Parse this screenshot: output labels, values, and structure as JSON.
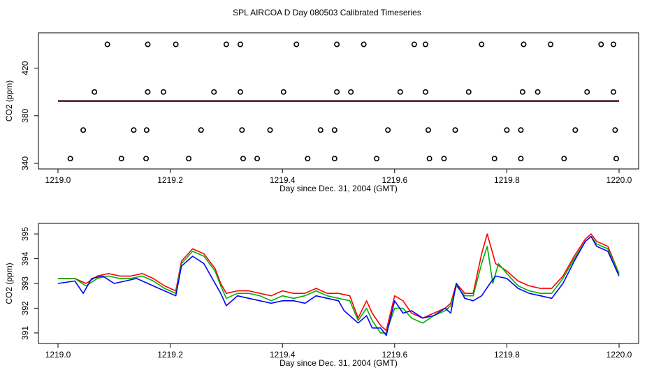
{
  "title": "SPL AIRCOA D  Day 080503  Calibrated Timeseries",
  "chart_data": [
    {
      "type": "scatter",
      "xlabel": "Day since Dec. 31, 2004 (GMT)",
      "ylabel": "CO2 (ppm)",
      "xlim": [
        1219.0,
        1220.0
      ],
      "ylim": [
        340,
        445
      ],
      "x_ticks": [
        "1219.0",
        "1219.2",
        "1219.4",
        "1219.6",
        "1219.8",
        "1220.0"
      ],
      "y_ticks": [
        "340",
        "380",
        "420"
      ],
      "grid": false,
      "points": [
        {
          "x": 1219.088,
          "y": 440
        },
        {
          "x": 1219.16,
          "y": 440
        },
        {
          "x": 1219.21,
          "y": 440
        },
        {
          "x": 1219.3,
          "y": 440
        },
        {
          "x": 1219.325,
          "y": 440
        },
        {
          "x": 1219.425,
          "y": 440
        },
        {
          "x": 1219.497,
          "y": 440
        },
        {
          "x": 1219.545,
          "y": 440
        },
        {
          "x": 1219.635,
          "y": 440
        },
        {
          "x": 1219.655,
          "y": 440
        },
        {
          "x": 1219.755,
          "y": 440
        },
        {
          "x": 1219.83,
          "y": 440
        },
        {
          "x": 1219.878,
          "y": 440
        },
        {
          "x": 1219.968,
          "y": 440
        },
        {
          "x": 1219.99,
          "y": 440
        },
        {
          "x": 1219.065,
          "y": 400
        },
        {
          "x": 1219.16,
          "y": 400
        },
        {
          "x": 1219.188,
          "y": 400
        },
        {
          "x": 1219.278,
          "y": 400
        },
        {
          "x": 1219.325,
          "y": 400
        },
        {
          "x": 1219.402,
          "y": 400
        },
        {
          "x": 1219.497,
          "y": 400
        },
        {
          "x": 1219.522,
          "y": 400
        },
        {
          "x": 1219.61,
          "y": 400
        },
        {
          "x": 1219.655,
          "y": 400
        },
        {
          "x": 1219.732,
          "y": 400
        },
        {
          "x": 1219.828,
          "y": 400
        },
        {
          "x": 1219.855,
          "y": 400
        },
        {
          "x": 1219.943,
          "y": 400
        },
        {
          "x": 1219.99,
          "y": 400
        },
        {
          "x": 1219.045,
          "y": 368
        },
        {
          "x": 1219.135,
          "y": 368
        },
        {
          "x": 1219.158,
          "y": 368
        },
        {
          "x": 1219.255,
          "y": 368
        },
        {
          "x": 1219.328,
          "y": 368
        },
        {
          "x": 1219.378,
          "y": 368
        },
        {
          "x": 1219.468,
          "y": 368
        },
        {
          "x": 1219.493,
          "y": 368
        },
        {
          "x": 1219.588,
          "y": 368
        },
        {
          "x": 1219.66,
          "y": 368
        },
        {
          "x": 1219.708,
          "y": 368
        },
        {
          "x": 1219.8,
          "y": 368
        },
        {
          "x": 1219.825,
          "y": 368
        },
        {
          "x": 1219.922,
          "y": 368
        },
        {
          "x": 1219.993,
          "y": 368
        },
        {
          "x": 1219.022,
          "y": 344
        },
        {
          "x": 1219.113,
          "y": 344
        },
        {
          "x": 1219.157,
          "y": 344
        },
        {
          "x": 1219.233,
          "y": 344
        },
        {
          "x": 1219.33,
          "y": 344
        },
        {
          "x": 1219.355,
          "y": 344
        },
        {
          "x": 1219.445,
          "y": 344
        },
        {
          "x": 1219.493,
          "y": 344
        },
        {
          "x": 1219.568,
          "y": 344
        },
        {
          "x": 1219.662,
          "y": 344
        },
        {
          "x": 1219.688,
          "y": 344
        },
        {
          "x": 1219.778,
          "y": 344
        },
        {
          "x": 1219.825,
          "y": 344
        },
        {
          "x": 1219.902,
          "y": 344
        },
        {
          "x": 1219.995,
          "y": 344
        }
      ],
      "series_color": "#000000",
      "flat_lines_colors": [
        "#ff0000",
        "#00b000",
        "#0000ff"
      ],
      "flat_line_level": 392.5
    },
    {
      "type": "line",
      "xlabel": "Day since Dec. 31, 2004 (GMT)",
      "ylabel": "CO2 (ppm)",
      "xlim": [
        1219.0,
        1220.0
      ],
      "ylim": [
        390.8,
        395.2
      ],
      "x_ticks": [
        "1219.0",
        "1219.2",
        "1219.4",
        "1219.6",
        "1219.8",
        "1220.0"
      ],
      "y_ticks": [
        "391",
        "392",
        "393",
        "394",
        "395"
      ],
      "grid": false,
      "series": [
        {
          "color": "#ff0000",
          "points": [
            [
              1219.0,
              393.2
            ],
            [
              1219.03,
              393.2
            ],
            [
              1219.05,
              393.0
            ],
            [
              1219.07,
              393.3
            ],
            [
              1219.09,
              393.4
            ],
            [
              1219.11,
              393.3
            ],
            [
              1219.13,
              393.3
            ],
            [
              1219.15,
              393.4
            ],
            [
              1219.17,
              393.2
            ],
            [
              1219.19,
              392.9
            ],
            [
              1219.21,
              392.7
            ],
            [
              1219.22,
              393.9
            ],
            [
              1219.24,
              394.4
            ],
            [
              1219.26,
              394.2
            ],
            [
              1219.28,
              393.6
            ],
            [
              1219.29,
              393.0
            ],
            [
              1219.3,
              392.6
            ],
            [
              1219.32,
              392.7
            ],
            [
              1219.34,
              392.7
            ],
            [
              1219.36,
              392.6
            ],
            [
              1219.38,
              392.5
            ],
            [
              1219.4,
              392.7
            ],
            [
              1219.42,
              392.6
            ],
            [
              1219.44,
              392.6
            ],
            [
              1219.46,
              392.8
            ],
            [
              1219.48,
              392.6
            ],
            [
              1219.5,
              392.6
            ],
            [
              1219.52,
              392.5
            ],
            [
              1219.535,
              391.6
            ],
            [
              1219.55,
              392.3
            ],
            [
              1219.56,
              391.8
            ],
            [
              1219.575,
              391.3
            ],
            [
              1219.585,
              391.1
            ],
            [
              1219.6,
              392.5
            ],
            [
              1219.615,
              392.3
            ],
            [
              1219.63,
              391.8
            ],
            [
              1219.65,
              391.6
            ],
            [
              1219.67,
              391.8
            ],
            [
              1219.69,
              392.0
            ],
            [
              1219.7,
              392.2
            ],
            [
              1219.71,
              393.0
            ],
            [
              1219.725,
              392.6
            ],
            [
              1219.74,
              392.6
            ],
            [
              1219.755,
              394.2
            ],
            [
              1219.765,
              395.0
            ],
            [
              1219.78,
              393.8
            ],
            [
              1219.8,
              393.5
            ],
            [
              1219.82,
              393.1
            ],
            [
              1219.84,
              392.9
            ],
            [
              1219.86,
              392.8
            ],
            [
              1219.88,
              392.8
            ],
            [
              1219.9,
              393.3
            ],
            [
              1219.92,
              394.1
            ],
            [
              1219.94,
              394.8
            ],
            [
              1219.95,
              395.0
            ],
            [
              1219.96,
              394.7
            ],
            [
              1219.98,
              394.5
            ],
            [
              1220.0,
              393.4
            ]
          ]
        },
        {
          "color": "#00b000",
          "points": [
            [
              1219.0,
              393.2
            ],
            [
              1219.03,
              393.2
            ],
            [
              1219.05,
              392.9
            ],
            [
              1219.07,
              393.2
            ],
            [
              1219.09,
              393.3
            ],
            [
              1219.11,
              393.2
            ],
            [
              1219.13,
              393.2
            ],
            [
              1219.15,
              393.3
            ],
            [
              1219.17,
              393.1
            ],
            [
              1219.19,
              392.8
            ],
            [
              1219.21,
              392.6
            ],
            [
              1219.22,
              393.8
            ],
            [
              1219.24,
              394.3
            ],
            [
              1219.26,
              394.1
            ],
            [
              1219.28,
              393.5
            ],
            [
              1219.29,
              392.9
            ],
            [
              1219.3,
              392.4
            ],
            [
              1219.32,
              392.6
            ],
            [
              1219.34,
              392.6
            ],
            [
              1219.36,
              392.5
            ],
            [
              1219.38,
              392.3
            ],
            [
              1219.4,
              392.5
            ],
            [
              1219.42,
              392.4
            ],
            [
              1219.44,
              392.5
            ],
            [
              1219.46,
              392.7
            ],
            [
              1219.48,
              392.5
            ],
            [
              1219.5,
              392.4
            ],
            [
              1219.52,
              392.3
            ],
            [
              1219.535,
              391.5
            ],
            [
              1219.55,
              392.0
            ],
            [
              1219.56,
              391.5
            ],
            [
              1219.575,
              391.0
            ],
            [
              1219.585,
              391.0
            ],
            [
              1219.6,
              392.0
            ],
            [
              1219.615,
              392.0
            ],
            [
              1219.63,
              391.6
            ],
            [
              1219.65,
              391.4
            ],
            [
              1219.67,
              391.7
            ],
            [
              1219.69,
              391.9
            ],
            [
              1219.7,
              392.1
            ],
            [
              1219.71,
              392.9
            ],
            [
              1219.725,
              392.5
            ],
            [
              1219.74,
              392.5
            ],
            [
              1219.755,
              393.8
            ],
            [
              1219.765,
              394.5
            ],
            [
              1219.775,
              393.0
            ],
            [
              1219.785,
              393.8
            ],
            [
              1219.8,
              393.4
            ],
            [
              1219.82,
              392.9
            ],
            [
              1219.84,
              392.7
            ],
            [
              1219.86,
              392.6
            ],
            [
              1219.88,
              392.6
            ],
            [
              1219.9,
              393.2
            ],
            [
              1219.92,
              394.0
            ],
            [
              1219.94,
              394.7
            ],
            [
              1219.95,
              394.9
            ],
            [
              1219.96,
              394.6
            ],
            [
              1219.98,
              394.4
            ],
            [
              1220.0,
              393.4
            ]
          ]
        },
        {
          "color": "#0000ff",
          "points": [
            [
              1219.0,
              393.0
            ],
            [
              1219.03,
              393.1
            ],
            [
              1219.045,
              392.6
            ],
            [
              1219.06,
              393.2
            ],
            [
              1219.08,
              393.3
            ],
            [
              1219.1,
              393.0
            ],
            [
              1219.12,
              393.1
            ],
            [
              1219.14,
              393.2
            ],
            [
              1219.16,
              393.0
            ],
            [
              1219.18,
              392.8
            ],
            [
              1219.2,
              392.6
            ],
            [
              1219.21,
              392.5
            ],
            [
              1219.22,
              393.7
            ],
            [
              1219.24,
              394.1
            ],
            [
              1219.26,
              393.8
            ],
            [
              1219.28,
              393.0
            ],
            [
              1219.29,
              392.6
            ],
            [
              1219.3,
              392.1
            ],
            [
              1219.32,
              392.5
            ],
            [
              1219.34,
              392.4
            ],
            [
              1219.36,
              392.3
            ],
            [
              1219.38,
              392.2
            ],
            [
              1219.4,
              392.3
            ],
            [
              1219.42,
              392.3
            ],
            [
              1219.44,
              392.2
            ],
            [
              1219.46,
              392.5
            ],
            [
              1219.48,
              392.4
            ],
            [
              1219.5,
              392.3
            ],
            [
              1219.51,
              391.9
            ],
            [
              1219.535,
              391.4
            ],
            [
              1219.55,
              391.7
            ],
            [
              1219.56,
              391.2
            ],
            [
              1219.575,
              391.2
            ],
            [
              1219.585,
              390.9
            ],
            [
              1219.6,
              392.3
            ],
            [
              1219.615,
              391.8
            ],
            [
              1219.63,
              391.9
            ],
            [
              1219.65,
              391.6
            ],
            [
              1219.67,
              391.7
            ],
            [
              1219.69,
              392.0
            ],
            [
              1219.7,
              391.8
            ],
            [
              1219.71,
              393.0
            ],
            [
              1219.725,
              392.4
            ],
            [
              1219.74,
              392.3
            ],
            [
              1219.755,
              392.5
            ],
            [
              1219.77,
              393.0
            ],
            [
              1219.78,
              393.3
            ],
            [
              1219.8,
              393.2
            ],
            [
              1219.82,
              392.8
            ],
            [
              1219.84,
              392.6
            ],
            [
              1219.86,
              392.5
            ],
            [
              1219.88,
              392.4
            ],
            [
              1219.9,
              393.0
            ],
            [
              1219.92,
              393.9
            ],
            [
              1219.94,
              394.7
            ],
            [
              1219.95,
              394.9
            ],
            [
              1219.96,
              394.5
            ],
            [
              1219.98,
              394.3
            ],
            [
              1220.0,
              393.3
            ]
          ]
        }
      ]
    }
  ]
}
